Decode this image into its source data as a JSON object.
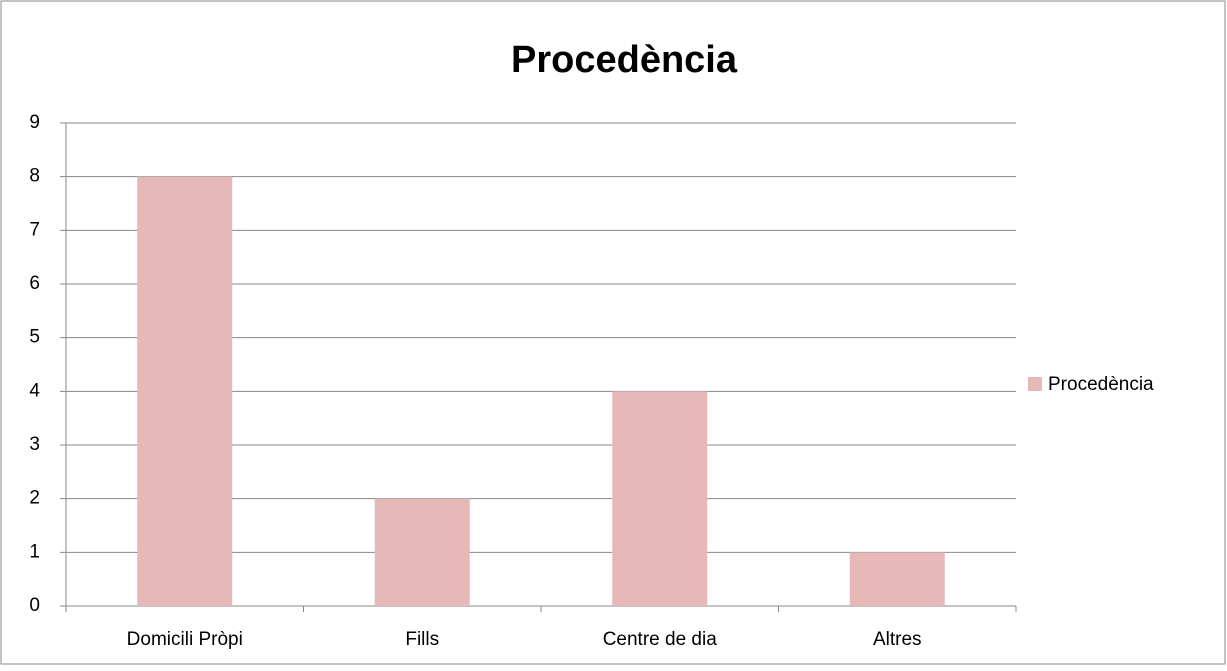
{
  "chart_data": {
    "type": "bar",
    "title": "Procedència",
    "categories": [
      "Domicili Pròpi",
      "Fills",
      "Centre de dia",
      "Altres"
    ],
    "series": [
      {
        "name": "Procedència",
        "color": "#e6b9b8",
        "values": [
          8,
          2,
          4,
          1
        ]
      }
    ],
    "ylim": [
      0,
      9
    ],
    "yticks": [
      0,
      1,
      2,
      3,
      4,
      5,
      6,
      7,
      8,
      9
    ],
    "grid": true,
    "legend": "right"
  }
}
